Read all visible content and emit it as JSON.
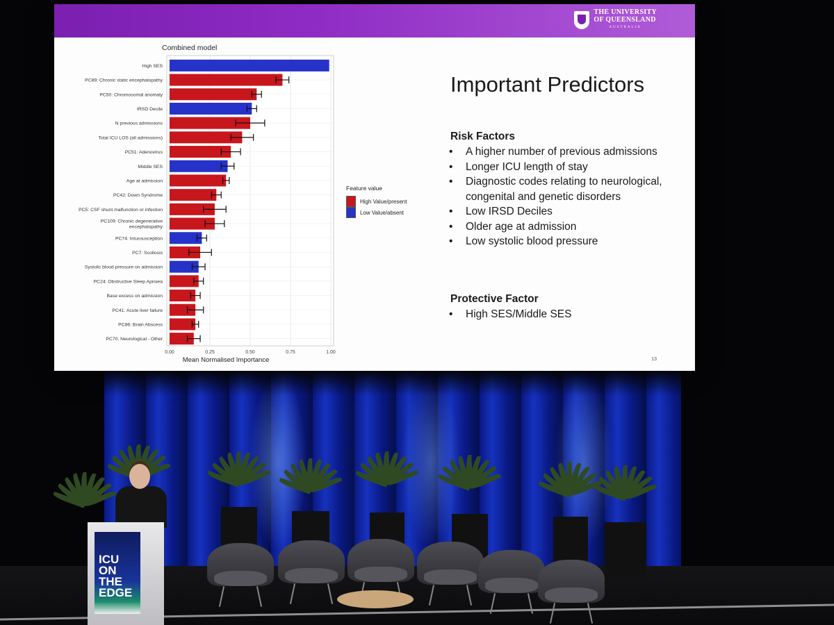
{
  "slide": {
    "title": "Important Predictors",
    "logo": {
      "line1": "The University",
      "line2": "of Queensland",
      "line3": "Australia"
    },
    "risk_heading": "Risk Factors",
    "risk_factors": [
      "A higher number of previous admissions",
      "Longer ICU length of stay",
      "Diagnostic codes relating to neurological, congenital and genetic disorders",
      "Low IRSD Deciles",
      "Older age at admission",
      "Low systolic blood pressure"
    ],
    "protective_heading": "Protective Factor",
    "protective_factors": [
      "High SES/Middle SES"
    ],
    "page_number": "13"
  },
  "chart_data": {
    "type": "bar",
    "orientation": "horizontal",
    "title": "Combined model",
    "xlabel": "Mean Normalised Importance",
    "ylabel": "",
    "xlim": [
      0,
      1
    ],
    "xticks": [
      "0.00",
      "0.25",
      "0.50",
      "0.75",
      "1.00"
    ],
    "grid": true,
    "legend": {
      "title": "Feature value",
      "placement": "right",
      "entries": [
        {
          "name": "High Value/present",
          "color": "#c8161d"
        },
        {
          "name": "Low Value/absent",
          "color": "#2632c8"
        }
      ]
    },
    "bars": [
      {
        "label": "High SES",
        "value": 0.99,
        "error": 0.0,
        "group": "low"
      },
      {
        "label": "PC89: Chronic static encephalopathy",
        "value": 0.7,
        "error": 0.04,
        "group": "high"
      },
      {
        "label": "PC50: Chromosomal anomaly",
        "value": 0.54,
        "error": 0.03,
        "group": "high"
      },
      {
        "label": "IRSD Decile",
        "value": 0.51,
        "error": 0.03,
        "group": "low"
      },
      {
        "label": "N previous admissions",
        "value": 0.5,
        "error": 0.09,
        "group": "high"
      },
      {
        "label": "Total ICU LOS (all admissions)",
        "value": 0.45,
        "error": 0.07,
        "group": "high"
      },
      {
        "label": "PC51: Adenovirus",
        "value": 0.38,
        "error": 0.06,
        "group": "high"
      },
      {
        "label": "Middle SES",
        "value": 0.36,
        "error": 0.04,
        "group": "low"
      },
      {
        "label": "Age at admission",
        "value": 0.35,
        "error": 0.02,
        "group": "high"
      },
      {
        "label": "PC42: Down Syndrome",
        "value": 0.29,
        "error": 0.03,
        "group": "high"
      },
      {
        "label": "PC5: CSF shunt malfunction or infection",
        "value": 0.28,
        "error": 0.07,
        "group": "high"
      },
      {
        "label": "PC109: Chronic degenerative encephalopathy",
        "value": 0.28,
        "error": 0.06,
        "group": "high"
      },
      {
        "label": "PC74: Intussusception",
        "value": 0.2,
        "error": 0.03,
        "group": "low"
      },
      {
        "label": "PC7: Scoliosis",
        "value": 0.19,
        "error": 0.07,
        "group": "high"
      },
      {
        "label": "Systolic blood pressure on admission",
        "value": 0.18,
        "error": 0.04,
        "group": "low"
      },
      {
        "label": "PC24: Obstructive Sleep Apnoea",
        "value": 0.18,
        "error": 0.03,
        "group": "high"
      },
      {
        "label": "Base excess on admission",
        "value": 0.16,
        "error": 0.03,
        "group": "high"
      },
      {
        "label": "PC41: Acute liver failure",
        "value": 0.16,
        "error": 0.05,
        "group": "high"
      },
      {
        "label": "PC86: Brain Abscess",
        "value": 0.16,
        "error": 0.02,
        "group": "high"
      },
      {
        "label": "PC70: Neurological - Other",
        "value": 0.15,
        "error": 0.04,
        "group": "high"
      }
    ]
  },
  "podium": {
    "text_lines": [
      "ICU",
      "ON",
      "THE",
      "EDGE"
    ]
  }
}
